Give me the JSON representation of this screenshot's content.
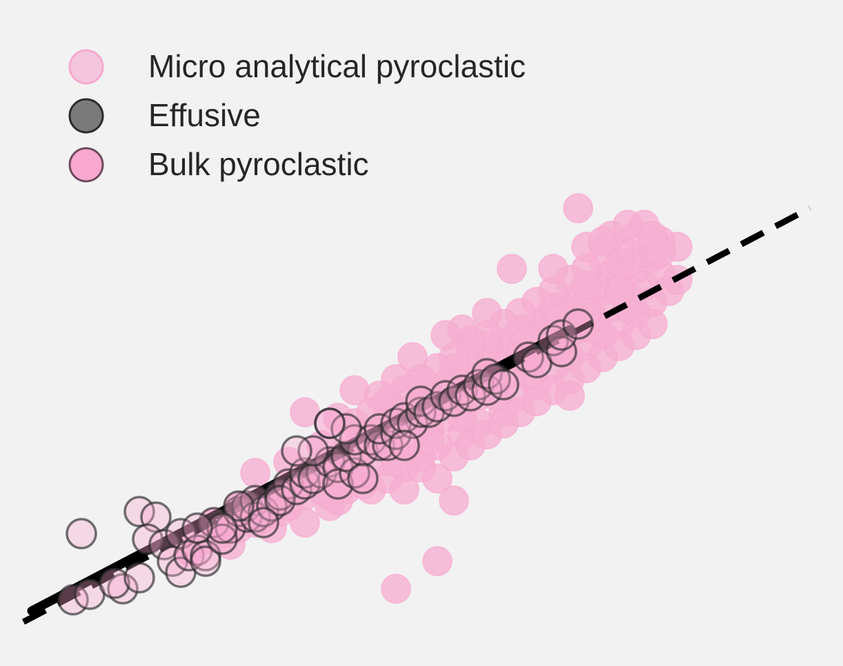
{
  "chart_data": {
    "type": "scatter",
    "title": "",
    "xlabel": "",
    "ylabel": "",
    "xlim": [
      0,
      100
    ],
    "ylim": [
      0,
      100
    ],
    "grid": false,
    "legend_position": "top-left",
    "colors": {
      "background": "#f2f2f2",
      "micro_fill": "#f5b3d4",
      "micro_stroke": "#f7a8cf",
      "bulk_fill": "#f9a8d0",
      "effusive_fill": "#7a7a7a",
      "edge": "#2a2a2a",
      "cloud": "#ff69b4",
      "line": "#000000"
    },
    "legend": [
      {
        "label": "Micro analytical pyroclastic",
        "marker": "micro"
      },
      {
        "label": "Effusive",
        "marker": "effusive"
      },
      {
        "label": "Bulk pyroclastic",
        "marker": "bulk"
      }
    ],
    "series": [
      {
        "name": "Micro analytical pyroclastic",
        "points": [
          [
            22,
            19
          ],
          [
            26,
            22
          ],
          [
            27,
            20
          ],
          [
            29,
            25
          ],
          [
            31,
            27
          ],
          [
            32,
            23
          ],
          [
            34,
            28
          ],
          [
            35,
            30
          ],
          [
            36,
            24
          ],
          [
            37,
            31
          ],
          [
            38,
            33
          ],
          [
            39,
            27
          ],
          [
            40,
            34
          ],
          [
            41,
            30
          ],
          [
            42,
            36
          ],
          [
            43,
            32
          ],
          [
            44,
            38
          ],
          [
            45,
            35
          ],
          [
            46,
            40
          ],
          [
            47,
            37
          ],
          [
            48,
            42
          ],
          [
            48,
            34
          ],
          [
            49,
            39
          ],
          [
            50,
            44
          ],
          [
            50,
            36
          ],
          [
            51,
            41
          ],
          [
            52,
            46
          ],
          [
            52,
            38
          ],
          [
            53,
            43
          ],
          [
            54,
            48
          ],
          [
            55,
            45
          ],
          [
            55,
            40
          ],
          [
            56,
            50
          ],
          [
            57,
            47
          ],
          [
            57,
            42
          ],
          [
            58,
            52
          ],
          [
            59,
            49
          ],
          [
            60,
            44
          ],
          [
            60,
            54
          ],
          [
            61,
            51
          ],
          [
            62,
            56
          ],
          [
            62,
            47
          ],
          [
            63,
            53
          ],
          [
            64,
            58
          ],
          [
            64,
            49
          ],
          [
            65,
            55
          ],
          [
            66,
            60
          ],
          [
            66,
            52
          ],
          [
            67,
            57
          ],
          [
            68,
            62
          ],
          [
            68,
            54
          ],
          [
            69,
            59
          ],
          [
            70,
            64
          ],
          [
            70,
            56
          ],
          [
            71,
            61
          ],
          [
            72,
            66
          ],
          [
            72,
            58
          ],
          [
            73,
            63
          ],
          [
            74,
            68
          ],
          [
            74,
            60
          ],
          [
            75,
            65
          ],
          [
            76,
            70
          ],
          [
            76,
            62
          ],
          [
            77,
            67
          ],
          [
            78,
            72
          ],
          [
            78,
            64
          ],
          [
            79,
            69
          ],
          [
            77,
            73
          ],
          [
            75,
            71
          ],
          [
            73,
            69
          ],
          [
            71,
            67
          ],
          [
            69,
            65
          ],
          [
            67,
            63
          ],
          [
            65,
            61
          ],
          [
            63,
            59
          ],
          [
            61,
            57
          ],
          [
            59,
            55
          ],
          [
            57,
            53
          ],
          [
            55,
            51
          ],
          [
            53,
            49
          ],
          [
            51,
            47
          ],
          [
            49,
            45
          ],
          [
            47,
            43
          ],
          [
            45,
            41
          ],
          [
            43,
            39
          ],
          [
            41,
            37
          ],
          [
            39,
            35
          ],
          [
            37,
            33
          ],
          [
            35,
            31
          ],
          [
            33,
            29
          ],
          [
            30,
            33
          ],
          [
            34,
            35
          ],
          [
            38,
            38
          ],
          [
            42,
            42
          ],
          [
            46,
            45
          ],
          [
            50,
            49
          ],
          [
            54,
            52
          ],
          [
            58,
            56
          ],
          [
            62,
            59
          ],
          [
            66,
            63
          ],
          [
            70,
            67
          ],
          [
            74,
            71
          ],
          [
            78,
            74
          ],
          [
            76,
            76
          ],
          [
            74,
            74
          ],
          [
            72,
            72
          ],
          [
            70,
            70
          ],
          [
            68,
            68
          ],
          [
            66,
            66
          ],
          [
            64,
            64
          ],
          [
            62,
            62
          ],
          [
            60,
            60
          ],
          [
            58,
            58
          ],
          [
            56,
            56
          ],
          [
            54,
            54
          ],
          [
            52,
            52
          ],
          [
            50,
            50
          ],
          [
            48,
            48
          ],
          [
            46,
            46
          ],
          [
            44,
            44
          ],
          [
            42,
            35
          ],
          [
            40,
            28
          ],
          [
            44,
            30
          ],
          [
            46,
            32
          ],
          [
            48,
            30
          ],
          [
            50,
            34
          ],
          [
            52,
            32
          ],
          [
            54,
            36
          ],
          [
            56,
            38
          ],
          [
            58,
            40
          ],
          [
            60,
            42
          ],
          [
            62,
            44
          ],
          [
            64,
            46
          ],
          [
            66,
            48
          ],
          [
            68,
            50
          ],
          [
            70,
            52
          ],
          [
            72,
            54
          ],
          [
            74,
            56
          ],
          [
            76,
            58
          ],
          [
            78,
            60
          ],
          [
            80,
            66
          ],
          [
            81,
            68
          ],
          [
            79,
            75
          ],
          [
            75,
            63
          ],
          [
            71,
            59
          ],
          [
            67,
            55
          ],
          [
            63,
            51
          ],
          [
            59,
            47
          ],
          [
            55,
            43
          ],
          [
            51,
            39
          ],
          [
            47,
            35
          ],
          [
            43,
            31
          ],
          [
            39,
            29
          ],
          [
            36,
            29
          ],
          [
            33,
            26
          ],
          [
            30,
            24
          ],
          [
            28,
            23
          ],
          [
            24,
            21
          ],
          [
            25,
            24
          ],
          [
            28,
            27
          ],
          [
            36,
            44
          ],
          [
            47,
            50
          ],
          [
            56,
            57
          ],
          [
            64,
            54
          ],
          [
            68,
            47
          ],
          [
            54,
            28
          ],
          [
            47,
            12
          ],
          [
            52,
            17
          ],
          [
            69,
            81
          ],
          [
            81,
            74
          ],
          [
            61,
            70
          ],
          [
            42,
            48
          ],
          [
            43,
            40
          ],
          [
            40,
            43
          ],
          [
            45,
            47
          ],
          [
            55,
            59
          ],
          [
            58,
            62
          ],
          [
            53,
            58
          ],
          [
            49,
            54
          ],
          [
            66,
            70
          ],
          [
            70,
            74
          ],
          [
            73,
            76
          ],
          [
            77,
            78
          ],
          [
            72,
            75
          ],
          [
            75,
            78
          ],
          [
            78,
            76
          ],
          [
            79,
            73
          ],
          [
            74,
            66
          ],
          [
            70,
            62
          ],
          [
            66,
            58
          ],
          [
            62,
            54
          ],
          [
            58,
            50
          ],
          [
            54,
            46
          ],
          [
            50,
            42
          ],
          [
            46,
            38
          ],
          [
            42,
            34
          ],
          [
            38,
            30
          ],
          [
            34,
            27
          ],
          [
            31,
            25
          ],
          [
            27,
            23
          ]
        ]
      },
      {
        "name": "Bulk pyroclastic",
        "points": [
          [
            8,
            10
          ],
          [
            10,
            11
          ],
          [
            9,
            22
          ],
          [
            14,
            12
          ],
          [
            13,
            13
          ],
          [
            16,
            14
          ],
          [
            16,
            26
          ],
          [
            18,
            25
          ],
          [
            17,
            21
          ],
          [
            19,
            20
          ],
          [
            21,
            22
          ],
          [
            20,
            17
          ],
          [
            21,
            15
          ],
          [
            22,
            18
          ],
          [
            23,
            19
          ],
          [
            24,
            18
          ],
          [
            24,
            17
          ],
          [
            25,
            24
          ],
          [
            27,
            23
          ],
          [
            26,
            21
          ],
          [
            28,
            26
          ],
          [
            29,
            25
          ],
          [
            29,
            27
          ],
          [
            30,
            28
          ],
          [
            30,
            25
          ],
          [
            31,
            26
          ],
          [
            32,
            27
          ],
          [
            33,
            29
          ],
          [
            34,
            31
          ],
          [
            33,
            28
          ],
          [
            35,
            30
          ],
          [
            36,
            31
          ],
          [
            36,
            33
          ],
          [
            38,
            33
          ],
          [
            37,
            32
          ],
          [
            39,
            35
          ],
          [
            40,
            34
          ],
          [
            40,
            31
          ],
          [
            42,
            33
          ],
          [
            41,
            36
          ],
          [
            43,
            37
          ],
          [
            42,
            39
          ],
          [
            44,
            39
          ],
          [
            45,
            38
          ],
          [
            46,
            38
          ],
          [
            45,
            41
          ],
          [
            47,
            40
          ],
          [
            47,
            42
          ],
          [
            48,
            43
          ],
          [
            49,
            42
          ],
          [
            50,
            44
          ],
          [
            50,
            46
          ],
          [
            51,
            44
          ],
          [
            52,
            45
          ],
          [
            53,
            47
          ],
          [
            54,
            46
          ],
          [
            55,
            48
          ],
          [
            56,
            47
          ],
          [
            57,
            49
          ],
          [
            58,
            48
          ],
          [
            58,
            51
          ],
          [
            59,
            50
          ],
          [
            60,
            49
          ],
          [
            63,
            54
          ],
          [
            64,
            53
          ],
          [
            66,
            57
          ],
          [
            67,
            55
          ],
          [
            67,
            58
          ],
          [
            69,
            60
          ],
          [
            39,
            42
          ],
          [
            41,
            41
          ],
          [
            39,
            42
          ],
          [
            48,
            38
          ],
          [
            37,
            37
          ],
          [
            35,
            37
          ],
          [
            43,
            32
          ],
          [
            31,
            24
          ],
          [
            28,
            27
          ],
          [
            26,
            23
          ],
          [
            23,
            23
          ]
        ]
      }
    ],
    "lines": [
      {
        "style": "solid",
        "x": [
          3,
          68
        ],
        "y": [
          8,
          59
        ]
      },
      {
        "style": "dashed",
        "x": [
          2,
          97
        ],
        "y": [
          6,
          81
        ]
      }
    ]
  }
}
